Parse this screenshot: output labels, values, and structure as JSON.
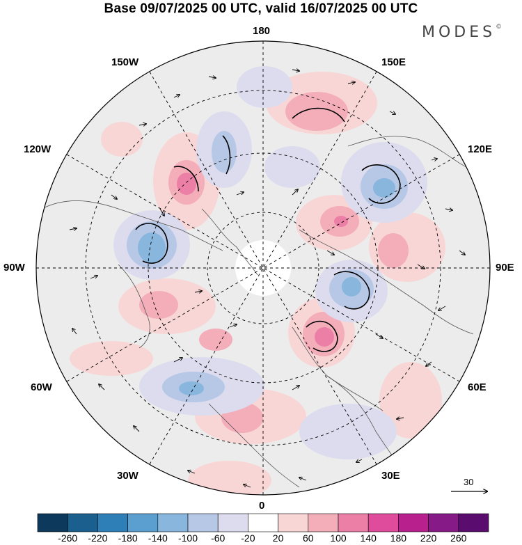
{
  "title": "Base 09/07/2025 00 UTC, valid 16/07/2025 00 UTC",
  "brand": "MODES",
  "brand_mark": "©",
  "map": {
    "projection": "north-polar-stereographic",
    "longitude_labels": {
      "top": "180",
      "bottom": "0",
      "left": "90W",
      "right": "90E",
      "upper_left_1": "150W",
      "upper_left_2": "120W",
      "lower_left_1": "60W",
      "lower_left_2": "30W",
      "upper_right_1": "150E",
      "upper_right_2": "120E",
      "lower_right_1": "60E",
      "lower_right_2": "30E"
    },
    "reference_vector": "30"
  },
  "colorbar": {
    "ticks": [
      "-260",
      "-220",
      "-180",
      "-140",
      "-100",
      "-60",
      "-20",
      "20",
      "60",
      "100",
      "140",
      "180",
      "220",
      "260"
    ],
    "colors": [
      "#0d3a5c",
      "#1a5f8e",
      "#2e7fb8",
      "#5a9fcf",
      "#89b6dd",
      "#b6c8e6",
      "#dcdcee",
      "#ffffff",
      "#f8d6d6",
      "#f3aeba",
      "#ec7fa6",
      "#df4c9c",
      "#b8208e",
      "#861a87",
      "#5a0d6e"
    ]
  }
}
